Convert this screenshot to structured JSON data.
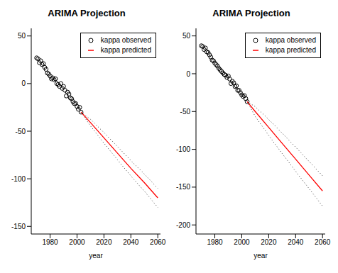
{
  "chart_data": [
    {
      "type": "line",
      "title": "ARIMA Projection",
      "x_label": "year",
      "xlim": [
        1966,
        2062
      ],
      "xticks": [
        1980,
        2000,
        2020,
        2040,
        2060
      ],
      "ylim": [
        -158,
        58
      ],
      "yticks": [
        -150,
        -100,
        -50,
        0,
        50
      ],
      "legend": "topright",
      "series": [
        {
          "name": "kappa observed",
          "type": "scatter",
          "marker": "circle",
          "color": "#000000",
          "x": [
            1970,
            1971,
            1972,
            1973,
            1974,
            1975,
            1976,
            1977,
            1978,
            1979,
            1980,
            1981,
            1982,
            1983,
            1984,
            1985,
            1986,
            1987,
            1988,
            1989,
            1990,
            1991,
            1992,
            1993,
            1994,
            1995,
            1996,
            1997,
            1998,
            1999,
            2000,
            2001,
            2002,
            2003
          ],
          "values": [
            27,
            26,
            22,
            24,
            20,
            21,
            17,
            15,
            11,
            10,
            8,
            5,
            6,
            4,
            5,
            0,
            -1,
            -3,
            0,
            -5,
            -3,
            -7,
            -13,
            -9,
            -11,
            -15,
            -16,
            -19,
            -21,
            -21,
            -24,
            -27,
            -25,
            -30
          ]
        },
        {
          "name": "kappa predicted",
          "type": "line",
          "line_style": "solid",
          "color": "#ff0000",
          "x": [
            2003,
            2010,
            2020,
            2030,
            2040,
            2050,
            2060
          ],
          "values": [
            -30,
            -41,
            -57,
            -73,
            -89,
            -104,
            -120
          ],
          "lower": [
            -30,
            -44.5,
            -62.5,
            -80,
            -97,
            -113,
            -130
          ],
          "upper": [
            -30,
            -37.5,
            -51.5,
            -66,
            -81,
            -95,
            -110
          ]
        }
      ]
    },
    {
      "type": "line",
      "title": "ARIMA Projection",
      "x_label": "year",
      "xlim": [
        1966,
        2062
      ],
      "xticks": [
        1980,
        2000,
        2020,
        2040,
        2060
      ],
      "ylim": [
        -212,
        60
      ],
      "yticks": [
        -200,
        -150,
        -100,
        -50,
        0,
        50
      ],
      "legend": "topright",
      "series": [
        {
          "name": "kappa observed",
          "type": "scatter",
          "marker": "circle",
          "color": "#000000",
          "x": [
            1970,
            1971,
            1972,
            1973,
            1974,
            1975,
            1976,
            1977,
            1978,
            1979,
            1980,
            1981,
            1982,
            1983,
            1984,
            1985,
            1986,
            1987,
            1988,
            1989,
            1990,
            1991,
            1992,
            1993,
            1994,
            1995,
            1996,
            1997,
            1998,
            1999,
            2000,
            2001,
            2002,
            2003,
            2004
          ],
          "values": [
            37,
            36,
            32,
            34,
            29,
            28,
            25,
            22,
            18,
            17,
            14,
            12,
            10,
            7,
            5,
            3,
            1,
            -1,
            -2,
            -5,
            -3,
            -7,
            -13,
            -10,
            -12,
            -17,
            -16,
            -22,
            -22,
            -25,
            -28,
            -30,
            -29,
            -33,
            -37
          ]
        },
        {
          "name": "kappa predicted",
          "type": "line",
          "line_style": "solid",
          "color": "#ff0000",
          "x": [
            2004,
            2010,
            2020,
            2030,
            2040,
            2050,
            2060
          ],
          "values": [
            -37,
            -50,
            -71,
            -92,
            -113,
            -134,
            -155
          ],
          "lower": [
            -37,
            -56.5,
            -81.6,
            -105.5,
            -129,
            -152,
            -175
          ],
          "upper": [
            -37,
            -43.5,
            -60.4,
            -78.5,
            -97,
            -116,
            -135
          ]
        }
      ]
    }
  ]
}
